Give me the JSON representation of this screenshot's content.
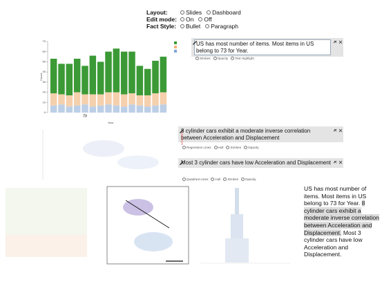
{
  "controls": [
    {
      "label": "Layout:",
      "options": [
        "Slides",
        "Dashboard"
      ]
    },
    {
      "label": "Edit mode:",
      "options": [
        "On",
        "Off"
      ]
    },
    {
      "label": "Fact Style:",
      "options": [
        "Bullet",
        "Paragraph"
      ]
    }
  ],
  "facts": [
    {
      "text": "US has most number of items. Most items in US belong to 73 for Year.",
      "chips": [
        "Strokes",
        "Opacity",
        "Text Highlight"
      ]
    },
    {
      "text": "8 cylinder cars exhibit a moderate inverse correlation between Acceleration and Displacement",
      "chips": [
        "Regression Lines",
        "Hull",
        "Strokes",
        "Opacity"
      ]
    },
    {
      "text": "Most 3 cylinder cars have low Acceleration and Displacement",
      "chips": [
        "Quadrant Lines",
        "Hull",
        "Strokes",
        "Opacity"
      ]
    }
  ],
  "summary": [
    "US has most number of items. Most items in US belong to 73 for Year.",
    "8 cylinder cars exhibit a moderate inverse correlation between Acceleration and Displacement.",
    "Most 3 cylinder cars have low Acceleration and Displacement."
  ],
  "chart_data": {
    "type": "bar",
    "stacked": true,
    "x_label": "Year",
    "y_label": "Count",
    "categories": [
      null,
      null,
      null,
      null,
      "73",
      null,
      null,
      null,
      null,
      null,
      null,
      null,
      null,
      null,
      null
    ],
    "series": [
      {
        "color": "#bccfe6",
        "values": [
          7,
          8,
          6,
          7,
          8,
          6,
          7,
          8,
          7,
          6,
          8,
          7,
          6,
          7,
          8
        ]
      },
      {
        "color": "#f5d0ad",
        "values": [
          12,
          10,
          11,
          13,
          10,
          12,
          11,
          12,
          13,
          12,
          11,
          10,
          11,
          12,
          12
        ]
      },
      {
        "color": "#3b9a36",
        "values": [
          34,
          30,
          31,
          33,
          28,
          38,
          32,
          40,
          43,
          42,
          41,
          29,
          26,
          32,
          35
        ]
      }
    ],
    "ylim": [
      0,
      70
    ],
    "yticks": [
      0,
      10,
      20,
      30,
      40,
      50,
      60,
      70
    ]
  }
}
